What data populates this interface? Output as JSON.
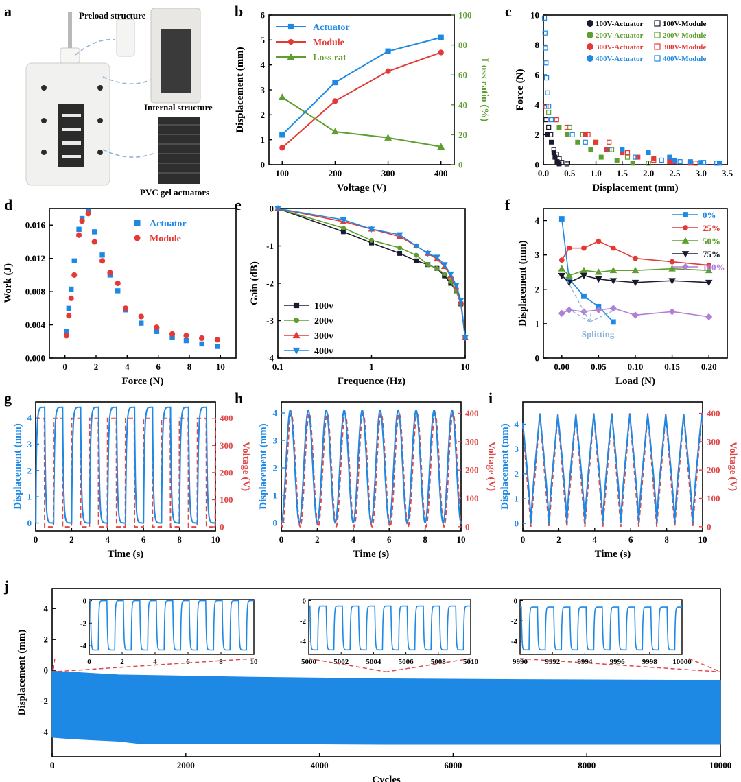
{
  "colors": {
    "blue": "#1e88e5",
    "red": "#e53935",
    "green": "#5e9e2e",
    "black": "#1a1a2e",
    "purple": "#b07fd6",
    "dashed": "#e04848",
    "axis": "#000000",
    "bluegray": "#8fb3d9"
  },
  "panel_letters": [
    "a",
    "b",
    "c",
    "d",
    "e",
    "f",
    "g",
    "h",
    "i",
    "j"
  ],
  "panel_a": {
    "labels": [
      "Preload structure",
      "Internal structure",
      "PVC gel actuators"
    ]
  },
  "chart_data": [
    {
      "id": "b",
      "type": "line",
      "title": "",
      "xlabel": "Voltage (V)",
      "ylabel": "Displacement (mm)",
      "y2label": "Loss ratio (%)",
      "xlim": [
        75,
        425
      ],
      "ylim": [
        0,
        6
      ],
      "y2lim": [
        0,
        100
      ],
      "xticks": [
        100,
        200,
        300,
        400
      ],
      "yticks": [
        0,
        1,
        2,
        3,
        4,
        5,
        6
      ],
      "y2ticks": [
        0,
        20,
        40,
        60,
        80,
        100
      ],
      "x": [
        100,
        200,
        300,
        400
      ],
      "series": [
        {
          "name": "Actuator",
          "axis": "left",
          "values": [
            1.2,
            3.3,
            4.55,
            5.1
          ],
          "marker": "square",
          "color": "blue"
        },
        {
          "name": "Module",
          "axis": "left",
          "values": [
            0.68,
            2.55,
            3.75,
            4.5
          ],
          "marker": "circle",
          "color": "red"
        },
        {
          "name": "Loss rat",
          "axis": "right",
          "values": [
            45,
            22,
            18,
            12
          ],
          "marker": "triangle",
          "color": "green"
        }
      ]
    },
    {
      "id": "c",
      "type": "scatter",
      "title": "",
      "xlabel": "Displacement (mm)",
      "ylabel": "Force (N)",
      "xlim": [
        0,
        3.5
      ],
      "ylim": [
        0,
        10
      ],
      "xticks": [
        0,
        0.5,
        1,
        1.5,
        2,
        2.5,
        3,
        3.5
      ],
      "xticklabels": [
        "0.0",
        "0.5",
        "1.0",
        "1.5",
        "2.0",
        "2.5",
        "3.0",
        "3.5"
      ],
      "yticks": [
        0,
        2,
        4,
        6,
        8,
        10
      ],
      "legend": [
        {
          "name": "100V-Actuator",
          "filled": true,
          "color": "black"
        },
        {
          "name": "100V-Module",
          "filled": false,
          "color": "black"
        },
        {
          "name": "200V-Actuator",
          "filled": true,
          "color": "green"
        },
        {
          "name": "200V-Module",
          "filled": false,
          "color": "green"
        },
        {
          "name": "300V-Actuator",
          "filled": true,
          "color": "red"
        },
        {
          "name": "300V-Module",
          "filled": false,
          "color": "red"
        },
        {
          "name": "400V-Actuator",
          "filled": true,
          "color": "blue"
        },
        {
          "name": "400V-Module",
          "filled": false,
          "color": "blue"
        }
      ],
      "series": [
        {
          "name": "100V-Actuator",
          "color": "black",
          "filled": true,
          "x": [
            0.08,
            0.15,
            0.2,
            0.22,
            0.26,
            0.3
          ],
          "y": [
            2,
            1.5,
            0.8,
            0.5,
            0.2,
            0.05
          ]
        },
        {
          "name": "100V-Module",
          "color": "black",
          "filled": false,
          "x": [
            0.05,
            0.1,
            0.14,
            0.2,
            0.25,
            0.3,
            0.35,
            0.45
          ],
          "y": [
            3,
            2.5,
            2,
            1,
            0.7,
            0.4,
            0.15,
            0.05
          ]
        },
        {
          "name": "200V-Actuator",
          "color": "green",
          "filled": true,
          "x": [
            0.3,
            0.45,
            0.65,
            0.9,
            1.1,
            1.4,
            1.7
          ],
          "y": [
            2.5,
            2,
            1.5,
            1,
            0.5,
            0.3,
            0.1
          ]
        },
        {
          "name": "200V-Module",
          "color": "green",
          "filled": false,
          "x": [
            0.1,
            0.25,
            0.5,
            0.75,
            1,
            1.3,
            1.6,
            2
          ],
          "y": [
            3.5,
            3,
            2.5,
            2,
            1.5,
            1,
            0.5,
            0.1
          ]
        },
        {
          "name": "300V-Actuator",
          "color": "red",
          "filled": true,
          "x": [
            0.8,
            1,
            1.2,
            1.5,
            1.8,
            2.1,
            2.4,
            2.8
          ],
          "y": [
            2,
            1.5,
            1,
            0.8,
            0.5,
            0.4,
            0.2,
            0.1
          ]
        },
        {
          "name": "300V-Module",
          "color": "red",
          "filled": false,
          "x": [
            0.05,
            0.25,
            0.45,
            0.85,
            1.25,
            1.6,
            2.1,
            2.5,
            2.9
          ],
          "y": [
            3.9,
            3,
            2.5,
            2,
            1.5,
            0.8,
            0.3,
            0.2,
            0.1
          ]
        },
        {
          "name": "400V-Actuator",
          "color": "blue",
          "filled": true,
          "x": [
            1.5,
            2,
            2.4,
            2.5,
            2.8,
            3,
            3.35
          ],
          "y": [
            1,
            0.8,
            0.5,
            0.3,
            0.2,
            0.15,
            0.1
          ]
        },
        {
          "name": "400V-Module",
          "color": "blue",
          "filled": false,
          "x": [
            0.02,
            0.03,
            0.04,
            0.05,
            0.06,
            0.08,
            0.1,
            0.15,
            0.55,
            0.8,
            1.25,
            1.75,
            2.25,
            2.6,
            3.05,
            3.3
          ],
          "y": [
            9.8,
            8.8,
            7.8,
            6.8,
            5.8,
            4.8,
            3.9,
            3,
            2,
            1.5,
            1,
            0.5,
            0.3,
            0.2,
            0.15,
            0.1
          ]
        }
      ]
    },
    {
      "id": "d",
      "type": "scatter",
      "title": "",
      "xlabel": "Force (N)",
      "ylabel": "Work (J)",
      "xlim": [
        -1,
        11
      ],
      "ylim": [
        0,
        0.018
      ],
      "xticks": [
        0,
        2,
        4,
        6,
        8,
        10
      ],
      "yticks": [
        0,
        0.004,
        0.008,
        0.012,
        0.016
      ],
      "yticklabels": [
        "0.000",
        "0.004",
        "0.008",
        "0.012",
        "0.016"
      ],
      "series": [
        {
          "name": "Actuator",
          "color": "blue",
          "marker": "square",
          "x": [
            0.1,
            0.25,
            0.4,
            0.6,
            0.9,
            1.1,
            1.5,
            1.9,
            2.4,
            2.9,
            3.4,
            3.9,
            4.9,
            5.9,
            6.9,
            7.8,
            8.8,
            9.8
          ],
          "y": [
            0.0032,
            0.006,
            0.0083,
            0.0117,
            0.0155,
            0.0168,
            0.0177,
            0.0152,
            0.0124,
            0.01,
            0.0081,
            0.0058,
            0.0042,
            0.0032,
            0.0025,
            0.0021,
            0.0017,
            0.0014
          ]
        },
        {
          "name": "Module",
          "color": "red",
          "marker": "circle",
          "x": [
            0.1,
            0.25,
            0.4,
            0.6,
            0.9,
            1.1,
            1.5,
            1.9,
            2.4,
            2.9,
            3.4,
            3.9,
            4.9,
            5.9,
            6.9,
            7.8,
            8.8,
            9.8
          ],
          "y": [
            0.0027,
            0.0051,
            0.0072,
            0.01,
            0.0148,
            0.0165,
            0.0174,
            0.014,
            0.0117,
            0.0103,
            0.009,
            0.006,
            0.005,
            0.0037,
            0.0029,
            0.0027,
            0.0024,
            0.0022
          ]
        }
      ]
    },
    {
      "id": "e",
      "type": "line",
      "title": "",
      "xlabel": "Frequence (Hz)",
      "ylabel": "Gain (dB)",
      "xscale": "log",
      "xlim": [
        0.1,
        10
      ],
      "ylim": [
        -4,
        0
      ],
      "xticks": [
        0.1,
        1,
        10
      ],
      "yticks": [
        -4,
        -3,
        -2,
        -1,
        0
      ],
      "series": [
        {
          "name": "100v",
          "color": "black",
          "marker": "square",
          "x": [
            0.1,
            0.5,
            1,
            2,
            3,
            4,
            5,
            6,
            7,
            8,
            9,
            10
          ],
          "y": [
            0,
            -0.62,
            -0.92,
            -1.2,
            -1.4,
            -1.5,
            -1.6,
            -1.8,
            -2.0,
            -2.2,
            -2.55,
            -3.45
          ]
        },
        {
          "name": "200v",
          "color": "green",
          "marker": "circle",
          "x": [
            0.1,
            0.5,
            1,
            2,
            3,
            4,
            5,
            6,
            7,
            8,
            9,
            10
          ],
          "y": [
            0,
            -0.52,
            -0.85,
            -1.05,
            -1.25,
            -1.5,
            -1.6,
            -1.75,
            -1.95,
            -2.2,
            -2.55,
            -3.45
          ]
        },
        {
          "name": "300v",
          "color": "red",
          "marker": "triangle",
          "x": [
            0.1,
            0.5,
            1,
            2,
            3,
            4,
            5,
            6,
            7,
            8,
            9,
            10
          ],
          "y": [
            0,
            -0.35,
            -0.55,
            -0.75,
            -1.0,
            -1.2,
            -1.35,
            -1.55,
            -1.8,
            -2.1,
            -2.5,
            -3.45
          ]
        },
        {
          "name": "400v",
          "color": "blue",
          "marker": "triangle-down",
          "x": [
            0.1,
            0.5,
            1,
            2,
            3,
            4,
            5,
            6,
            7,
            8,
            9,
            10
          ],
          "y": [
            0,
            -0.3,
            -0.55,
            -0.7,
            -1.0,
            -1.2,
            -1.3,
            -1.5,
            -1.75,
            -2.05,
            -2.45,
            -3.45
          ]
        }
      ]
    },
    {
      "id": "f",
      "type": "line",
      "title": "",
      "xlabel": "Load (N)",
      "ylabel": "Displacement (mm)",
      "xlim": [
        -0.025,
        0.225
      ],
      "ylim": [
        0,
        4.35
      ],
      "xticks": [
        0,
        0.05,
        0.1,
        0.15,
        0.2
      ],
      "xticklabels": [
        "0.00",
        "0.05",
        "0.10",
        "0.15",
        "0.20"
      ],
      "yticks": [
        0,
        1,
        2,
        3,
        4
      ],
      "annotation": "Splitting",
      "series": [
        {
          "name": "0%",
          "color": "blue",
          "marker": "square",
          "x": [
            0,
            0.01,
            0.03,
            0.05,
            0.07
          ],
          "y": [
            4.05,
            2.3,
            1.8,
            1.5,
            1.05
          ]
        },
        {
          "name": "25%",
          "color": "red",
          "marker": "circle",
          "x": [
            0,
            0.01,
            0.03,
            0.05,
            0.07,
            0.1,
            0.15,
            0.2
          ],
          "y": [
            2.85,
            3.2,
            3.2,
            3.4,
            3.2,
            2.9,
            2.8,
            2.7
          ]
        },
        {
          "name": "50%",
          "color": "green",
          "marker": "triangle",
          "x": [
            0,
            0.01,
            0.03,
            0.05,
            0.07,
            0.1,
            0.15,
            0.2
          ],
          "y": [
            2.6,
            2.4,
            2.55,
            2.5,
            2.55,
            2.55,
            2.6,
            2.55
          ]
        },
        {
          "name": "75%",
          "color": "black",
          "marker": "triangle-down",
          "x": [
            0,
            0.01,
            0.03,
            0.05,
            0.07,
            0.1,
            0.15,
            0.2
          ],
          "y": [
            2.4,
            2.2,
            2.4,
            2.3,
            2.25,
            2.2,
            2.25,
            2.2
          ]
        },
        {
          "name": "100%",
          "color": "purple",
          "marker": "diamond",
          "x": [
            0,
            0.01,
            0.03,
            0.05,
            0.07,
            0.1,
            0.15,
            0.2
          ],
          "y": [
            1.3,
            1.4,
            1.35,
            1.4,
            1.45,
            1.25,
            1.35,
            1.2
          ]
        }
      ]
    },
    {
      "id": "g",
      "type": "line",
      "waveform": "square",
      "xlabel": "Time (s)",
      "ylabel": "Displacement (mm)",
      "y2label": "Voltage (V)",
      "xlim": [
        0,
        10
      ],
      "ylim": [
        -0.3,
        4.6
      ],
      "y2lim": [
        -15,
        460
      ],
      "xticks": [
        0,
        2,
        4,
        6,
        8,
        10
      ],
      "yticks": [
        0,
        1,
        2,
        3,
        4
      ],
      "y2ticks": [
        0,
        100,
        200,
        300,
        400
      ],
      "frequency_hz": 1,
      "displacement_amplitude_mm": 4.4,
      "voltage_amplitude_v": 400
    },
    {
      "id": "h",
      "type": "line",
      "waveform": "sine",
      "xlabel": "Time (s)",
      "ylabel": "Displacement (mm)",
      "y2label": "Voltage (V)",
      "xlim": [
        0,
        10
      ],
      "ylim": [
        -0.3,
        4.4
      ],
      "y2lim": [
        -15,
        440
      ],
      "xticks": [
        0,
        2,
        4,
        6,
        8,
        10
      ],
      "yticks": [
        0,
        1,
        2,
        3,
        4
      ],
      "y2ticks": [
        0,
        100,
        200,
        300,
        400
      ],
      "frequency_hz": 1,
      "displacement_amplitude_mm": 4.1,
      "voltage_amplitude_v": 400
    },
    {
      "id": "i",
      "type": "line",
      "waveform": "triangle",
      "xlabel": "Time (s)",
      "ylabel": "Displacement (mm)",
      "y2label": "Voltage (V)",
      "xlim": [
        0,
        10
      ],
      "ylim": [
        -0.3,
        4.9
      ],
      "y2lim": [
        -15,
        440
      ],
      "xticks": [
        0,
        2,
        4,
        6,
        8,
        10
      ],
      "yticks": [
        0,
        1,
        2,
        3,
        4
      ],
      "y2ticks": [
        0,
        100,
        200,
        300,
        400
      ],
      "frequency_hz": 1,
      "displacement_amplitude_mm": 4.4,
      "voltage_amplitude_v": 400
    },
    {
      "id": "j",
      "type": "area",
      "xlabel": "Cycles",
      "ylabel": "Displacement (mm)",
      "xlim": [
        0,
        10000
      ],
      "ylim": [
        -5.6,
        5.3
      ],
      "xticks": [
        0,
        2000,
        4000,
        6000,
        8000,
        10000
      ],
      "yticks": [
        -4,
        -2,
        0,
        2,
        4
      ],
      "upper_envelope": {
        "x": [
          0,
          1000,
          3000,
          5000,
          7000,
          10000
        ],
        "y": [
          -0.05,
          -0.3,
          -0.45,
          -0.55,
          -0.6,
          -0.65
        ]
      },
      "lower_envelope": {
        "x": [
          0,
          300,
          1000,
          1300,
          3000,
          5000,
          10000
        ],
        "y": [
          -4.35,
          -4.45,
          -4.6,
          -4.75,
          -4.75,
          -4.8,
          -4.8
        ]
      },
      "insets": [
        {
          "xlim": [
            0,
            10
          ],
          "xticks": [
            0,
            2,
            4,
            6,
            8,
            10
          ],
          "ylim": [
            -4.8,
            0.1
          ],
          "yticks": [
            0,
            -2,
            -4
          ],
          "low": -4.4
        },
        {
          "xlim": [
            5000,
            5010
          ],
          "xticks": [
            5000,
            5002,
            5004,
            5006,
            5008,
            5010
          ],
          "ylim": [
            -5.3,
            0.1
          ],
          "yticks": [
            0,
            -2,
            -4
          ],
          "low": -4.85,
          "high": -0.55
        },
        {
          "xlim": [
            9990,
            10000
          ],
          "xticks": [
            9990,
            9992,
            9994,
            9996,
            9998,
            10000
          ],
          "ylim": [
            -5.3,
            0.1
          ],
          "yticks": [
            0,
            -2,
            -4
          ],
          "low": -4.85,
          "high": -0.65
        }
      ]
    }
  ]
}
